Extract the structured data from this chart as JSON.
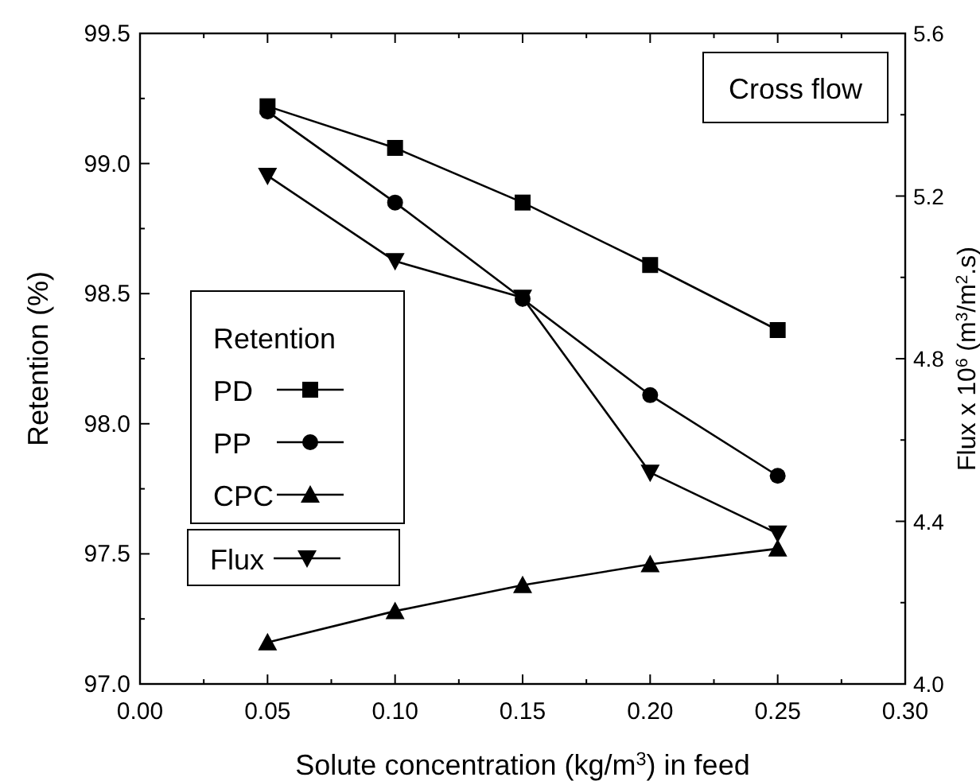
{
  "chart_data": {
    "type": "line",
    "xlabel": "Solute concentration (kg/m$^{3}$) in feed",
    "ylabel": "Retention (%)",
    "y2label": "Flux x 10$^{6}$ (m$^{3}$/m$^{2}$.s)",
    "legend_title": "Retention",
    "annotations": [
      "Cross flow"
    ],
    "x": [
      0.05,
      0.1,
      0.15,
      0.2,
      0.25
    ],
    "xlim": [
      0,
      0.3
    ],
    "xticks": [
      {
        "value": 0,
        "label": "0.00"
      },
      {
        "value": 0.05,
        "label": "0.05"
      },
      {
        "value": 0.1,
        "label": "0.10"
      },
      {
        "value": 0.15,
        "label": "0.15"
      },
      {
        "value": 0.2,
        "label": "0.20"
      },
      {
        "value": 0.25,
        "label": "0.25"
      },
      {
        "value": 0.3,
        "label": "0.30"
      }
    ],
    "ylim": [
      97,
      99.5
    ],
    "yticks": [
      {
        "value": 97,
        "label": "97.0"
      },
      97.5,
      {
        "value": 98,
        "label": "98.0"
      },
      98.5,
      {
        "value": 99,
        "label": "99.0"
      },
      99.5
    ],
    "y2lim": [
      4,
      5.6
    ],
    "y2ticks": [
      {
        "value": 4,
        "label": "4.0"
      },
      4.4,
      4.8,
      5.2,
      5.6
    ],
    "legend": "left",
    "grid": false,
    "series": [
      {
        "name": "PD",
        "color": "#000000",
        "marker": "square",
        "values": [
          99.22,
          99.06,
          98.85,
          98.61,
          98.36
        ]
      },
      {
        "name": "PP",
        "color": "#000000",
        "marker": "circle",
        "values": [
          99.2,
          98.85,
          98.48,
          98.11,
          97.8
        ]
      },
      {
        "name": "CPC",
        "color": "#000000",
        "marker": "triangle",
        "values": [
          97.16,
          97.28,
          97.38,
          97.46,
          97.52
        ]
      },
      {
        "name": "Flux",
        "color": "#000000",
        "marker": "triangle-down",
        "axis": "y2",
        "values": [
          5.25,
          5.04,
          4.95,
          4.52,
          4.37
        ]
      }
    ]
  }
}
